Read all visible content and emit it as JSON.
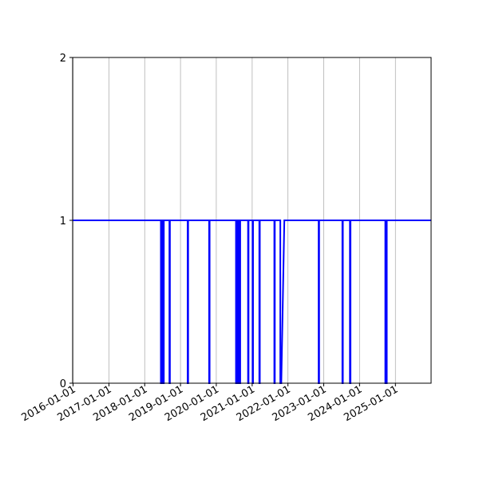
{
  "chart_data": {
    "type": "line",
    "title": "",
    "xlabel": "",
    "ylabel": "",
    "x_ticks": [
      "2016-01-01",
      "2017-01-01",
      "2018-01-01",
      "2019-01-01",
      "2020-01-01",
      "2021-01-01",
      "2022-01-01",
      "2023-01-01",
      "2024-01-01",
      "2025-01-01"
    ],
    "y_ticks": [
      "0",
      "1",
      "2"
    ],
    "xlim": [
      "2015-12-28",
      "2025-12-31"
    ],
    "ylim": [
      0,
      2
    ],
    "grid": "vertical",
    "line_color": "#0000ff",
    "series": [
      {
        "points": [
          [
            "2015-12-28",
            1
          ],
          [
            "2018-06-15",
            1
          ],
          [
            "2018-06-15",
            0
          ],
          [
            "2018-06-20",
            0
          ],
          [
            "2018-06-20",
            1
          ],
          [
            "2018-06-25",
            1
          ],
          [
            "2018-06-25",
            0
          ],
          [
            "2018-07-01",
            0
          ],
          [
            "2018-07-01",
            1
          ],
          [
            "2018-07-10",
            1
          ],
          [
            "2018-07-10",
            0
          ],
          [
            "2018-07-15",
            0
          ],
          [
            "2018-07-15",
            1
          ],
          [
            "2018-09-10",
            1
          ],
          [
            "2018-09-10",
            0
          ],
          [
            "2018-09-15",
            0
          ],
          [
            "2018-09-15",
            1
          ],
          [
            "2019-03-15",
            1
          ],
          [
            "2019-03-15",
            0
          ],
          [
            "2019-03-20",
            0
          ],
          [
            "2019-03-20",
            1
          ],
          [
            "2019-10-20",
            1
          ],
          [
            "2019-10-20",
            0
          ],
          [
            "2019-10-25",
            0
          ],
          [
            "2019-10-25",
            1
          ],
          [
            "2020-07-20",
            1
          ],
          [
            "2020-07-20",
            0
          ],
          [
            "2020-07-25",
            0
          ],
          [
            "2020-07-25",
            1
          ],
          [
            "2020-08-05",
            1
          ],
          [
            "2020-08-05",
            0
          ],
          [
            "2020-08-10",
            0
          ],
          [
            "2020-08-10",
            1
          ],
          [
            "2020-08-25",
            1
          ],
          [
            "2020-08-25",
            0
          ],
          [
            "2020-09-01",
            0
          ],
          [
            "2020-09-01",
            1
          ],
          [
            "2020-11-20",
            1
          ],
          [
            "2020-11-20",
            0
          ],
          [
            "2020-11-25",
            0
          ],
          [
            "2020-11-25",
            1
          ],
          [
            "2021-01-05",
            1
          ],
          [
            "2021-01-05",
            0
          ],
          [
            "2021-01-10",
            0
          ],
          [
            "2021-01-10",
            1
          ],
          [
            "2021-03-15",
            1
          ],
          [
            "2021-03-15",
            0
          ],
          [
            "2021-03-20",
            0
          ],
          [
            "2021-03-20",
            1
          ],
          [
            "2021-08-15",
            1
          ],
          [
            "2021-08-15",
            0
          ],
          [
            "2021-08-20",
            0
          ],
          [
            "2021-08-20",
            1
          ],
          [
            "2021-10-15",
            1
          ],
          [
            "2021-10-15",
            0
          ],
          [
            "2021-10-25",
            0
          ],
          [
            "2021-11-25",
            1
          ],
          [
            "2022-11-10",
            1
          ],
          [
            "2022-11-10",
            0
          ],
          [
            "2022-11-15",
            0
          ],
          [
            "2022-11-15",
            1
          ],
          [
            "2023-07-10",
            1
          ],
          [
            "2023-07-10",
            0
          ],
          [
            "2023-07-15",
            0
          ],
          [
            "2023-07-15",
            1
          ],
          [
            "2023-09-25",
            1
          ],
          [
            "2023-09-25",
            0
          ],
          [
            "2023-10-01",
            0
          ],
          [
            "2023-10-01",
            1
          ],
          [
            "2024-09-20",
            1
          ],
          [
            "2024-09-20",
            0
          ],
          [
            "2024-09-25",
            0
          ],
          [
            "2024-09-25",
            1
          ],
          [
            "2024-10-01",
            1
          ],
          [
            "2024-10-01",
            0
          ],
          [
            "2024-10-05",
            0
          ],
          [
            "2024-10-05",
            1
          ],
          [
            "2025-12-31",
            1
          ]
        ]
      }
    ]
  }
}
